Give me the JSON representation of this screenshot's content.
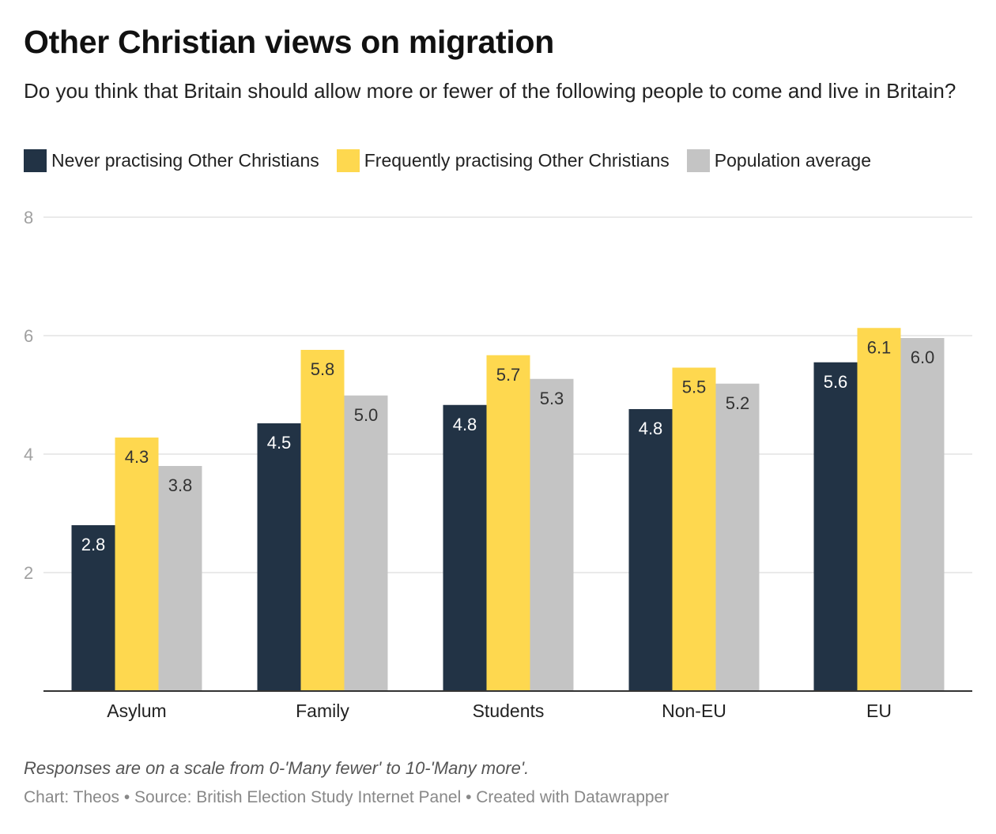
{
  "title": "Other Christian views on migration",
  "subtitle": "Do you think that Britain should allow more or fewer of the following people to come and live in Britain?",
  "note": "Responses are on a scale from 0-'Many fewer' to 10-'Many more'.",
  "footer": "Chart: Theos • Source: British Election Study Internet Panel • Created with Datawrapper",
  "chart_data": {
    "type": "bar",
    "categories": [
      "Asylum",
      "Family",
      "Students",
      "Non-EU",
      "EU"
    ],
    "series": [
      {
        "name": "Never practising Other Christians",
        "color": "#223345",
        "label_color": "#ffffff",
        "values": [
          2.8,
          4.52,
          4.83,
          4.76,
          5.55
        ],
        "labels": [
          "2.8",
          "4.5",
          "4.8",
          "4.8",
          "5.6"
        ]
      },
      {
        "name": "Frequently practising Other Christians",
        "color": "#fed84f",
        "label_color": "#333333",
        "values": [
          4.28,
          5.76,
          5.67,
          5.46,
          6.13
        ],
        "labels": [
          "4.3",
          "5.8",
          "5.7",
          "5.5",
          "6.1"
        ]
      },
      {
        "name": "Population average",
        "color": "#c4c4c4",
        "label_color": "#333333",
        "values": [
          3.8,
          4.99,
          5.27,
          5.19,
          5.96
        ],
        "labels": [
          "3.8",
          "5.0",
          "5.3",
          "5.2",
          "6.0"
        ]
      }
    ],
    "yticks": [
      "2",
      "4",
      "6",
      "8"
    ],
    "ylim": [
      0,
      8
    ],
    "xlabel": "",
    "ylabel": ""
  }
}
